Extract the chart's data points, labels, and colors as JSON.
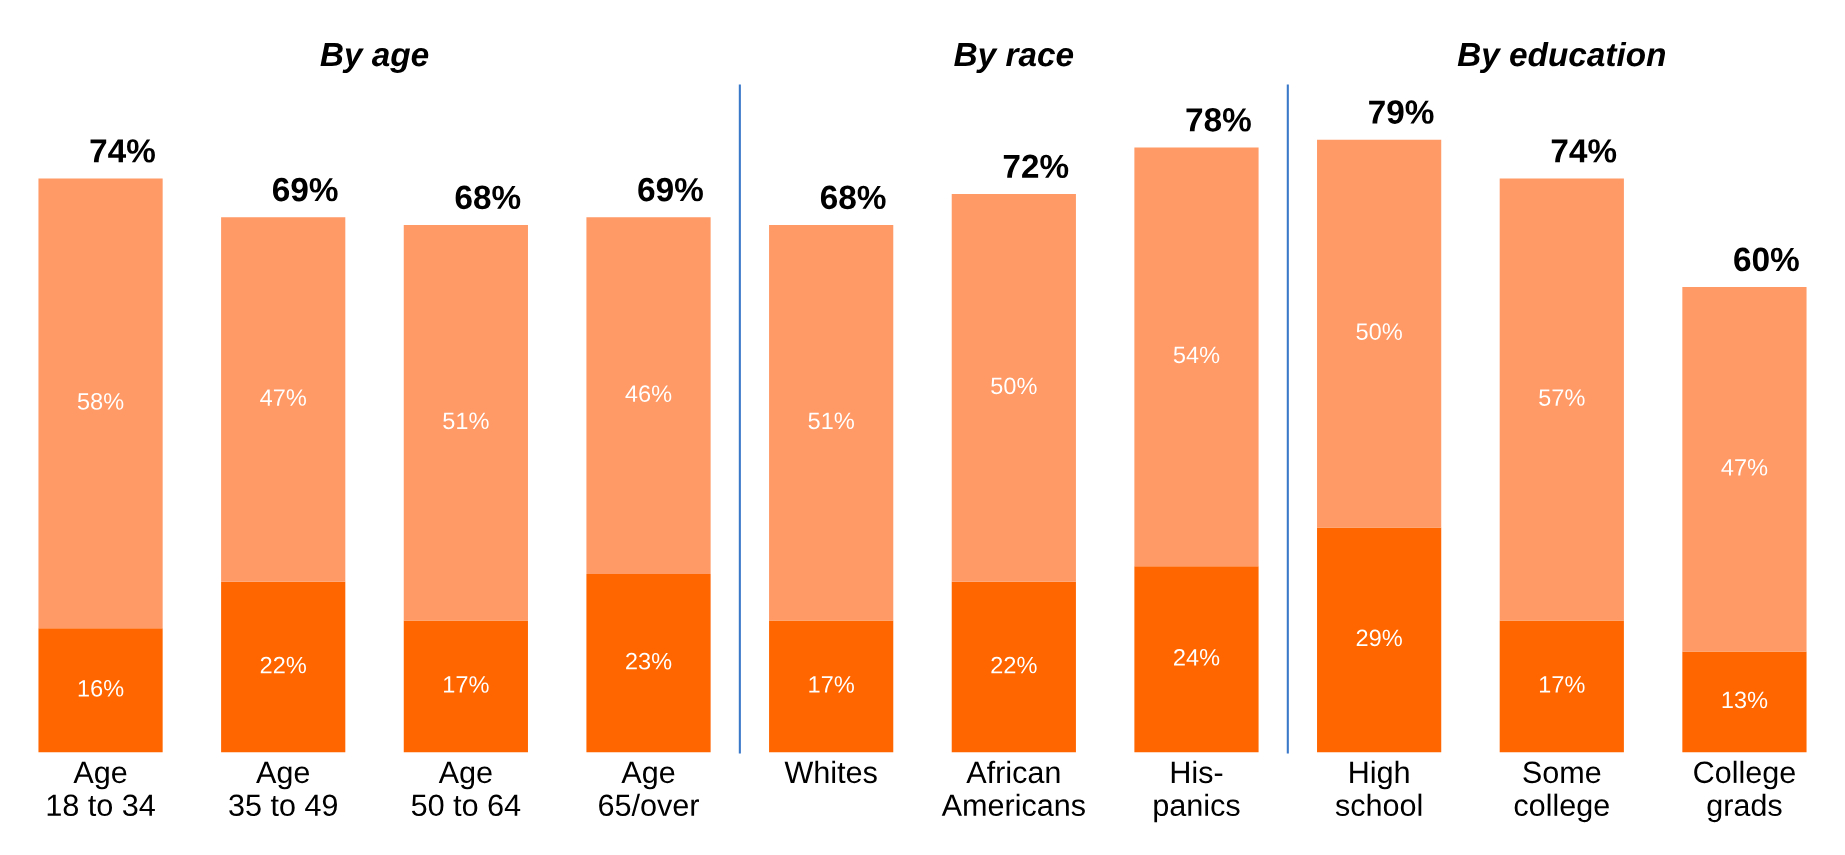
{
  "chart_data": [
    {
      "type": "bar",
      "title": "By age",
      "stacked": true,
      "categories": [
        "Age\n18 to 34",
        "Age\n35 to 49",
        "Age\n50 to 64",
        "Age\n65/over"
      ],
      "ylim": [
        0,
        86
      ],
      "grid": false,
      "legend": false,
      "series": [
        {
          "color": "#ff6600",
          "values": [
            16,
            22,
            17,
            23
          ],
          "value_labels": [
            "16%",
            "22%",
            "17%",
            "23%"
          ]
        },
        {
          "color": "#ff9966",
          "values": [
            58,
            47,
            51,
            46
          ],
          "value_labels": [
            "58%",
            "47%",
            "51%",
            "46%"
          ]
        }
      ],
      "totals": [
        "74%",
        "69%",
        "68%",
        "69%"
      ]
    },
    {
      "type": "bar",
      "title": "By race",
      "stacked": true,
      "categories": [
        "Whites",
        "African\nAmericans",
        "His-\npanics"
      ],
      "ylim": [
        0,
        86
      ],
      "grid": false,
      "legend": false,
      "series": [
        {
          "color": "#ff6600",
          "values": [
            17,
            22,
            24
          ],
          "value_labels": [
            "17%",
            "22%",
            "24%"
          ]
        },
        {
          "color": "#ff9966",
          "values": [
            51,
            50,
            54
          ],
          "value_labels": [
            "51%",
            "50%",
            "54%"
          ]
        }
      ],
      "totals": [
        "68%",
        "72%",
        "78%"
      ]
    },
    {
      "type": "bar",
      "title": "By education",
      "stacked": true,
      "categories": [
        "High\nschool",
        "Some\ncollege",
        "College\ngrads"
      ],
      "ylim": [
        0,
        86
      ],
      "grid": false,
      "legend": false,
      "series": [
        {
          "color": "#ff6600",
          "values": [
            29,
            17,
            13
          ],
          "value_labels": [
            "29%",
            "17%",
            "13%"
          ]
        },
        {
          "color": "#ff9966",
          "values": [
            50,
            57,
            47
          ],
          "value_labels": [
            "50%",
            "57%",
            "47%"
          ]
        }
      ],
      "totals": [
        "79%",
        "74%",
        "60%"
      ]
    }
  ]
}
